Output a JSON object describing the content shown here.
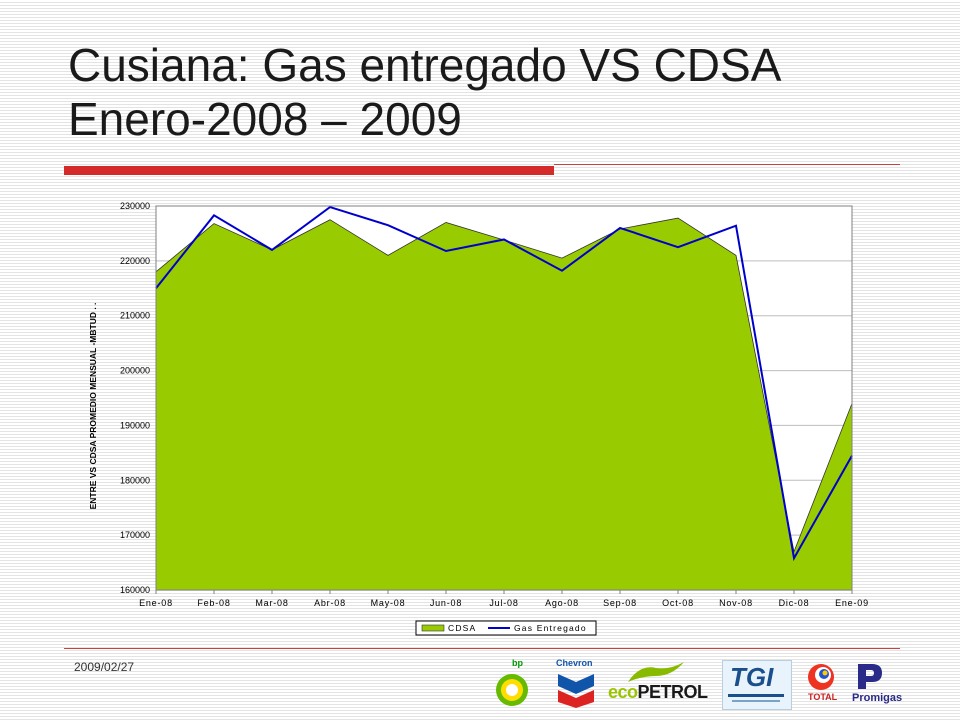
{
  "slide": {
    "title_line1": "Cusiana: Gas entregado VS CDSA",
    "title_line2": "Enero-2008 – 2009",
    "date": "2009/02/27"
  },
  "colors": {
    "accent": "#d42a2a",
    "cdsa_fill": "#99cc00",
    "gas_line": "#0000cc"
  },
  "logos": [
    {
      "icon": "bp-logo",
      "text": "bp"
    },
    {
      "icon": "chevron-logo",
      "text": "Chevron"
    },
    {
      "icon": "ecopetrol-logo",
      "text": "ecoPETROL"
    },
    {
      "icon": "tgi-logo",
      "text": "TGI"
    },
    {
      "icon": "total-logo",
      "text": "TOTAL"
    },
    {
      "icon": "promigas-logo",
      "text": "Promigas"
    }
  ],
  "chart_data": {
    "type": "area",
    "ylabel": "ENTRE VS CDSA PROMEDIO MENSUAL -MBTUD . .",
    "xlabel": "",
    "categories": [
      "Ene-08",
      "Feb-08",
      "Mar-08",
      "Abr-08",
      "May-08",
      "Jun-08",
      "Jul-08",
      "Ago-08",
      "Sep-08",
      "Oct-08",
      "Nov-08",
      "Dic-08",
      "Ene-09"
    ],
    "ylim": [
      160000,
      230000
    ],
    "yticks": [
      "160000",
      "170000",
      "180000",
      "190000",
      "200000",
      "210000",
      "220000",
      "230000"
    ],
    "series": [
      {
        "name": "CDSA",
        "type": "area",
        "color": "#99cc00",
        "values": [
          218000,
          226800,
          222000,
          227500,
          221000,
          227000,
          223800,
          220500,
          225800,
          227800,
          221000,
          167000,
          194000
        ]
      },
      {
        "name": "Gas Entregado",
        "type": "line",
        "color": "#0000cc",
        "values": [
          215000,
          228300,
          222000,
          229800,
          226500,
          221800,
          223900,
          218200,
          226000,
          222500,
          226400,
          165800,
          184500
        ]
      }
    ],
    "legend": "bottom"
  }
}
